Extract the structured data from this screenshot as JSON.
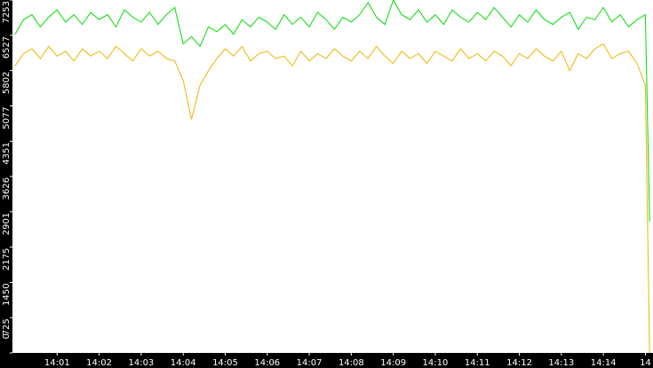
{
  "chart_data": {
    "type": "line",
    "x": [
      0,
      0.2,
      0.4,
      0.6,
      0.8,
      1,
      1.2,
      1.4,
      1.6,
      1.8,
      2,
      2.2,
      2.4,
      2.6,
      2.8,
      3,
      3.2,
      3.4,
      3.6,
      3.8,
      4,
      4.2,
      4.4,
      4.6,
      4.8,
      5,
      5.2,
      5.4,
      5.6,
      5.8,
      6,
      6.2,
      6.4,
      6.6,
      6.8,
      7,
      7.2,
      7.4,
      7.6,
      7.8,
      8,
      8.2,
      8.4,
      8.6,
      8.8,
      9,
      9.2,
      9.4,
      9.6,
      9.8,
      10,
      10.2,
      10.4,
      10.6,
      10.8,
      11,
      11.2,
      11.4,
      11.6,
      11.8,
      12,
      12.2,
      12.4,
      12.6,
      12.8,
      13,
      13.2,
      13.4,
      13.6,
      13.8,
      14,
      14.2,
      14.4,
      14.6,
      14.8,
      15,
      15.1
    ],
    "series": [
      {
        "color": "#00dd00",
        "values": [
          6550,
          6850,
          6950,
          6700,
          6900,
          7050,
          6800,
          6950,
          6750,
          7000,
          6850,
          6950,
          6700,
          7050,
          6900,
          6800,
          7000,
          6750,
          6950,
          7100,
          6350,
          6500,
          6300,
          6700,
          6600,
          6750,
          6550,
          6850,
          6700,
          6900,
          6800,
          6650,
          6950,
          6750,
          6900,
          6700,
          7000,
          6850,
          6650,
          6900,
          6800,
          6950,
          7200,
          6900,
          6750,
          7250,
          6950,
          6850,
          7050,
          6800,
          6950,
          6750,
          7050,
          6900,
          6800,
          7000,
          6850,
          7100,
          6900,
          6700,
          6950,
          6800,
          7050,
          6850,
          6750,
          6900,
          7000,
          6650,
          6900,
          6850,
          7100,
          6800,
          6950,
          6700,
          6850,
          6950,
          2700
        ]
      },
      {
        "color": "#f0b400",
        "values": [
          5900,
          6150,
          6250,
          6050,
          6300,
          6100,
          6200,
          6000,
          6250,
          6100,
          6200,
          6050,
          6300,
          6150,
          6000,
          6250,
          6100,
          6200,
          6050,
          6000,
          5600,
          4800,
          5500,
          5800,
          6050,
          6250,
          6100,
          6300,
          6000,
          6150,
          6200,
          6050,
          6100,
          5900,
          6200,
          6000,
          6150,
          6050,
          6250,
          6100,
          6000,
          6200,
          6050,
          6300,
          6100,
          5950,
          6200,
          6050,
          6150,
          5950,
          6200,
          6100,
          6000,
          6250,
          6050,
          6150,
          6000,
          6200,
          6100,
          5900,
          6150,
          6050,
          6250,
          6100,
          6000,
          6200,
          5800,
          6150,
          6050,
          6250,
          6350,
          6050,
          6150,
          6200,
          5950,
          5500,
          0
        ]
      }
    ],
    "xlim": [
      0,
      15.16
    ],
    "xticks": [
      {
        "value": 1,
        "label": "14:01"
      },
      {
        "value": 2,
        "label": "14:02"
      },
      {
        "value": 3,
        "label": "14:03"
      },
      {
        "value": 4,
        "label": "14:04"
      },
      {
        "value": 5,
        "label": "14:05"
      },
      {
        "value": 6,
        "label": "14:06"
      },
      {
        "value": 7,
        "label": "14:07"
      },
      {
        "value": 8,
        "label": "14:08"
      },
      {
        "value": 9,
        "label": "14:09"
      },
      {
        "value": 10,
        "label": "14:10"
      },
      {
        "value": 11,
        "label": "14:11"
      },
      {
        "value": 12,
        "label": "14:12"
      },
      {
        "value": 13,
        "label": "14:13"
      },
      {
        "value": 14,
        "label": "14:14"
      },
      {
        "value": 15,
        "label": "14"
      }
    ],
    "ylim": [
      0,
      7253
    ],
    "yticks": [
      0,
      725,
      1450,
      2175,
      2901,
      3626,
      4351,
      5077,
      5802,
      6527,
      7253
    ]
  }
}
